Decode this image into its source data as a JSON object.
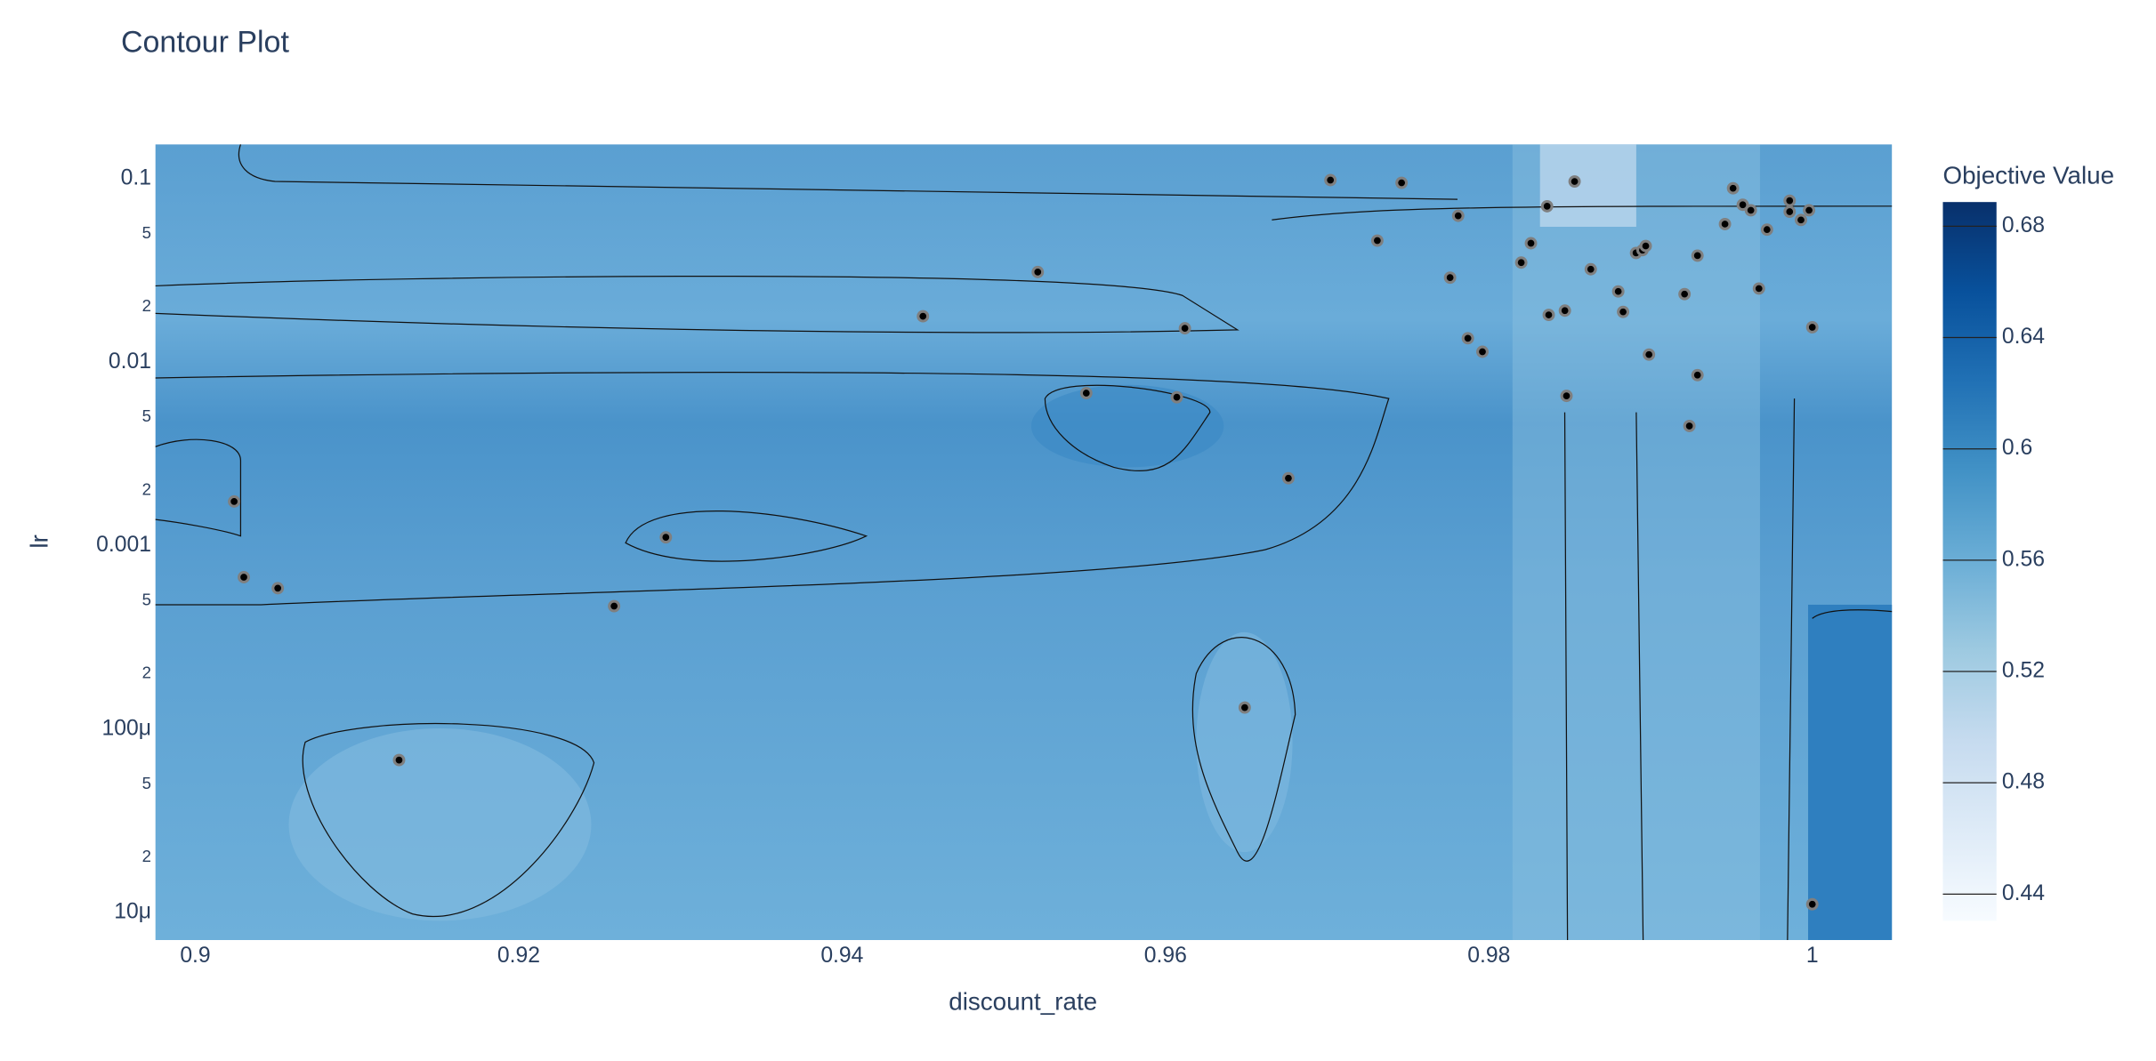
{
  "chart_data": {
    "type": "contour",
    "title": "Contour Plot",
    "x_label": "discount_rate",
    "y_label": "lr",
    "ylog": true,
    "xlim": [
      0.89753,
      1.00493
    ],
    "ylim": [
      7.08e-06,
      0.154
    ],
    "xticks": [
      0.9,
      0.92,
      0.94,
      0.96,
      0.98,
      1
    ],
    "yticks": [
      {
        "value": 1e-05,
        "label": "10μ"
      },
      {
        "value": 2e-05,
        "label": "2"
      },
      {
        "value": 5e-05,
        "label": "5"
      },
      {
        "value": 0.0001,
        "label": "100μ"
      },
      {
        "value": 0.0002,
        "label": "2"
      },
      {
        "value": 0.0005,
        "label": "5"
      },
      0.001,
      {
        "value": 0.002,
        "label": "2"
      },
      {
        "value": 0.005,
        "label": "5"
      },
      0.01,
      {
        "value": 0.02,
        "label": "2"
      },
      {
        "value": 0.05,
        "label": "5"
      },
      0.1
    ],
    "marker_color": "#000000",
    "marker_line_color": "#7f7f7f",
    "x": [
      0.9024,
      0.903,
      0.9051,
      0.9126,
      0.9259,
      0.9291,
      0.945,
      0.9521,
      0.9551,
      0.9607,
      0.9612,
      0.9649,
      0.9676,
      0.9702,
      0.9746,
      0.9731,
      0.9776,
      0.9781,
      0.9787,
      0.9796,
      0.982,
      0.9826,
      0.9836,
      0.9837,
      0.9847,
      0.9848,
      0.9853,
      0.9863,
      0.988,
      0.9883,
      0.9891,
      0.9895,
      0.9897,
      0.9899,
      0.9924,
      0.9921,
      0.9929,
      0.9929,
      0.9946,
      0.9951,
      0.9957,
      0.9962,
      0.9967,
      0.9972,
      0.9986,
      0.9986,
      0.9993,
      0.9998,
      1.0,
      1.0
    ],
    "y": [
      0.00174,
      0.000673,
      0.000586,
      6.78e-05,
      0.000468,
      0.00111,
      0.0178,
      0.031,
      0.00678,
      0.00644,
      0.0153,
      0.000131,
      0.00233,
      0.0983,
      0.095,
      0.046,
      0.0289,
      0.0628,
      0.0135,
      0.0114,
      0.0349,
      0.0445,
      0.0708,
      0.0181,
      0.0191,
      0.00655,
      0.0966,
      0.0321,
      0.0243,
      0.0188,
      0.0394,
      0.0408,
      0.043,
      0.011,
      0.00449,
      0.0235,
      0.0085,
      0.0381,
      0.0566,
      0.0887,
      0.0721,
      0.0673,
      0.0252,
      0.0528,
      0.0759,
      0.0661,
      0.0596,
      0.0673,
      0.0155,
      1.11e-05
    ],
    "colorbar": {
      "title": "Objective Value",
      "range": [
        0.4304,
        0.6887
      ],
      "ticks": [
        0.44,
        0.48,
        0.52,
        0.56,
        0.6,
        0.64,
        0.68
      ],
      "colorscale": [
        "#f7fbff",
        "#deebf7",
        "#c6dbef",
        "#9ecae1",
        "#6baed6",
        "#4292c6",
        "#2171b5",
        "#08519c",
        "#08306b"
      ]
    }
  }
}
